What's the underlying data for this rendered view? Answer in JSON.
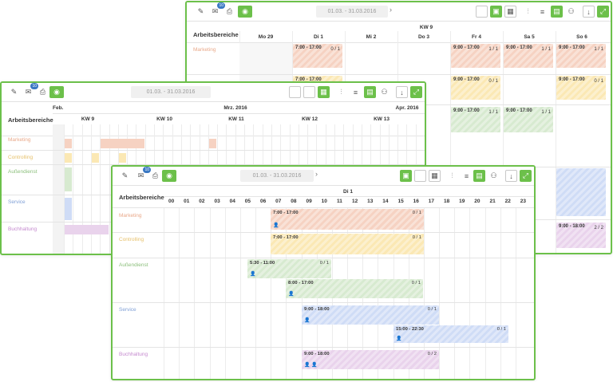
{
  "toolbar": {
    "badge_count": "10",
    "date_range": "01.03. - 31.03.2016",
    "next_icon": "chevron-right-icon"
  },
  "week_window": {
    "section_label": "Arbeitsbereiche",
    "week_label": "KW 9",
    "days": [
      "Mo 29",
      "Di 1",
      "Mi 2",
      "Do 3",
      "Fr 4",
      "Sa 5",
      "So 6"
    ],
    "departments": [
      "Marketing"
    ],
    "shifts": {
      "di_marketing": {
        "time": "7:00 - 17:00",
        "count": "0 / 1"
      },
      "di_row2": {
        "time": "7:00 - 17:00"
      },
      "fr_marketing": {
        "time": "9:00 - 17:00",
        "count": "1 / 1"
      },
      "sa_marketing": {
        "time": "9:00 - 17:00",
        "count": "1 / 1"
      },
      "so_marketing": {
        "time": "9:00 - 17:00",
        "count": "1 / 1"
      },
      "fr_row2": {
        "time": "9:00 - 17:00",
        "count": "0 / 1"
      },
      "so_row2": {
        "time": "9:00 - 17:00",
        "count": "0 / 1"
      },
      "fr_row3": {
        "time": "9:00 - 17:00",
        "count": "1 / 1"
      },
      "sa_row3": {
        "time": "9:00 - 17:00",
        "count": "1 / 1"
      },
      "so_row5": {
        "time": "9:00 - 18:00",
        "count": "2 / 2"
      }
    }
  },
  "month_window": {
    "section_label": "Arbeitsbereiche",
    "months": [
      "Feb.",
      "Mrz. 2016",
      "Apr. 2016"
    ],
    "weeks": [
      "KW 9",
      "KW 10",
      "KW 11",
      "KW 12",
      "KW 13"
    ],
    "departments": [
      "Marketing",
      "Controlling",
      "Außendienst",
      "Service",
      "Buchhaltung"
    ]
  },
  "day_window": {
    "section_label": "Arbeitsbereiche",
    "day_label": "Di 1",
    "hours": [
      "00",
      "01",
      "02",
      "03",
      "04",
      "05",
      "06",
      "07",
      "08",
      "09",
      "10",
      "11",
      "12",
      "13",
      "14",
      "15",
      "16",
      "17",
      "18",
      "19",
      "20",
      "21",
      "22",
      "23"
    ],
    "departments": [
      "Marketing",
      "Controlling",
      "Außendienst",
      "Service",
      "Buchhaltung"
    ],
    "shifts": [
      {
        "time": "7:00 - 17:00",
        "count": "0 / 1"
      },
      {
        "time": "7:00 - 17:00",
        "count": "0 / 1"
      },
      {
        "time": "5:30 - 11:00",
        "count": "0 / 1"
      },
      {
        "time": "8:00 - 17:00",
        "count": "0 / 1"
      },
      {
        "time": "9:00 - 18:00",
        "count": "0 / 1"
      },
      {
        "time": "15:00 - 22:30",
        "count": "0 / 1"
      },
      {
        "time": "9:00 - 18:00",
        "count": "0 / 2"
      }
    ]
  },
  "colors": {
    "accent": "#6cc04a",
    "marketing": "#f6d2c2",
    "controlling": "#fbe8b4",
    "aussendienst": "#d7ead0",
    "service": "#cfdcf6",
    "buchhaltung": "#e9d3ec"
  }
}
